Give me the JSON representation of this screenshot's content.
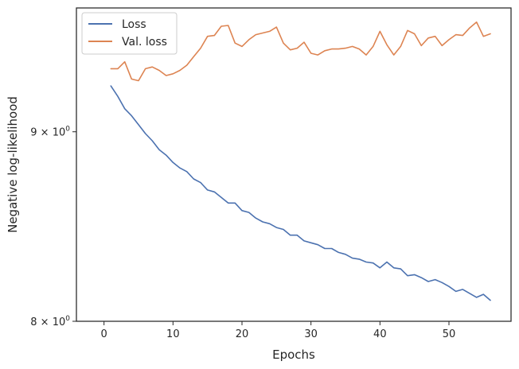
{
  "chart_data": {
    "type": "line",
    "title": "",
    "xlabel": "Epochs",
    "ylabel": "Negative log-likelihood",
    "yscale": "log",
    "xlim": [
      -4,
      59
    ],
    "ylim": [
      8.0,
      9.72
    ],
    "xticks": [
      0,
      10,
      20,
      30,
      40,
      50
    ],
    "xtick_labels": [
      "0",
      "10",
      "20",
      "30",
      "40",
      "50"
    ],
    "yticks": [
      8.0,
      9.0
    ],
    "ytick_label_bases": [
      "8",
      "9"
    ],
    "ytick_label_exponent": "0",
    "ytick_label_times": "×",
    "grid": false,
    "legend_position": "top-left",
    "x": [
      1,
      2,
      3,
      4,
      5,
      6,
      7,
      8,
      9,
      10,
      11,
      12,
      13,
      14,
      15,
      16,
      17,
      18,
      19,
      20,
      21,
      22,
      23,
      24,
      25,
      26,
      27,
      28,
      29,
      30,
      31,
      32,
      33,
      34,
      35,
      36,
      37,
      38,
      39,
      40,
      41,
      42,
      43,
      44,
      45,
      46,
      47,
      48,
      49,
      50,
      51,
      52,
      53,
      54,
      55,
      56
    ],
    "series": [
      {
        "name": "Loss",
        "color": "#4c72b0",
        "values": [
          9.26,
          9.2,
          9.13,
          9.09,
          9.04,
          8.99,
          8.95,
          8.9,
          8.87,
          8.83,
          8.8,
          8.78,
          8.74,
          8.72,
          8.68,
          8.67,
          8.64,
          8.61,
          8.61,
          8.57,
          8.56,
          8.53,
          8.51,
          8.5,
          8.48,
          8.47,
          8.44,
          8.44,
          8.41,
          8.4,
          8.39,
          8.37,
          8.37,
          8.35,
          8.34,
          8.32,
          8.315,
          8.3,
          8.295,
          8.27,
          8.3,
          8.27,
          8.265,
          8.23,
          8.235,
          8.22,
          8.2,
          8.21,
          8.195,
          8.175,
          8.15,
          8.16,
          8.14,
          8.12,
          8.135,
          8.105
        ]
      },
      {
        "name": "Val. loss",
        "color": "#dd8452",
        "values": [
          9.36,
          9.36,
          9.4,
          9.3,
          9.29,
          9.36,
          9.37,
          9.35,
          9.32,
          9.33,
          9.35,
          9.38,
          9.43,
          9.48,
          9.55,
          9.555,
          9.61,
          9.615,
          9.51,
          9.49,
          9.53,
          9.56,
          9.57,
          9.58,
          9.605,
          9.51,
          9.47,
          9.48,
          9.515,
          9.45,
          9.44,
          9.465,
          9.475,
          9.475,
          9.48,
          9.49,
          9.475,
          9.44,
          9.49,
          9.58,
          9.5,
          9.44,
          9.49,
          9.585,
          9.565,
          9.495,
          9.54,
          9.55,
          9.495,
          9.53,
          9.56,
          9.555,
          9.6,
          9.635,
          9.55,
          9.565
        ]
      }
    ]
  }
}
